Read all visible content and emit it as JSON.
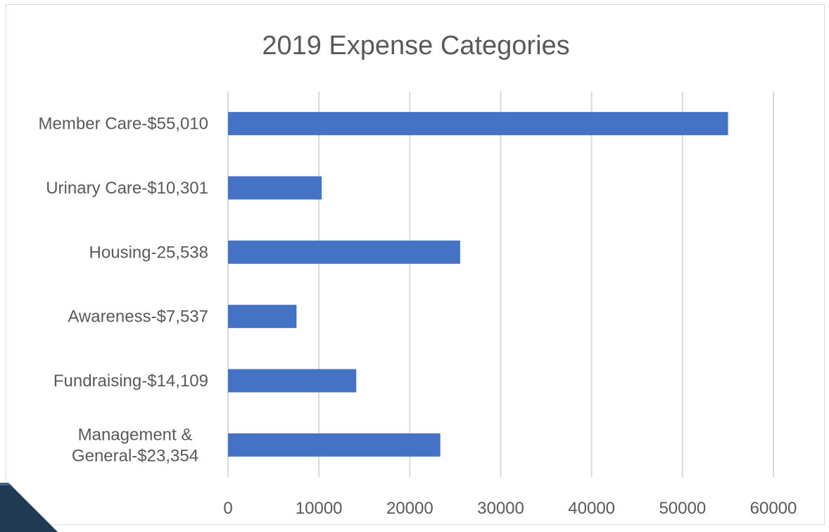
{
  "chart_data": {
    "type": "bar",
    "orientation": "horizontal",
    "title": "2019 Expense Categories",
    "xlabel": "",
    "ylabel": "",
    "categories": [
      [
        "Member Care-$55,010"
      ],
      [
        "Urinary Care-$10,301"
      ],
      [
        "Housing-25,538"
      ],
      [
        "Awareness-$7,537"
      ],
      [
        "Fundraising-$14,109"
      ],
      [
        "Management & ",
        "General-$23,354"
      ]
    ],
    "values": [
      55010,
      10301,
      25538,
      7537,
      14109,
      23354
    ],
    "xlim": [
      0,
      60000
    ],
    "xticks": [
      "0",
      "10000",
      "20000",
      "30000",
      "40000",
      "50000",
      "60000"
    ],
    "grid": true,
    "legend": "none",
    "bar_color": "#4472C4"
  },
  "decor": {
    "corner_color": "#1F3A52",
    "corner_highlight": "#3E6480"
  }
}
